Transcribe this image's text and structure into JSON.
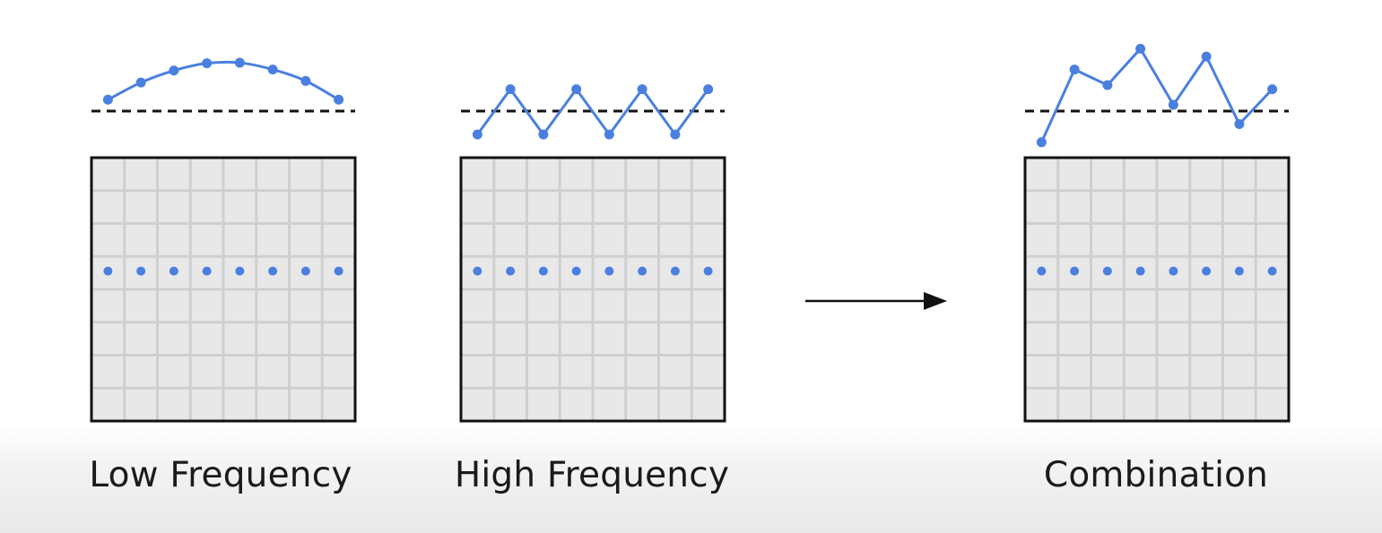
{
  "colors": {
    "signal": "#4a7fe0",
    "grid_fill": "#e8e8e8",
    "grid_line": "#cfcfcf",
    "frame": "#111111",
    "baseline": "#111111",
    "arrow": "#111111"
  },
  "samples_per_row": 8,
  "grid_size": 8,
  "highlighted_row": 3,
  "panels": [
    {
      "id": "low",
      "label": "Low Frequency",
      "signal_values": [
        0.22,
        0.55,
        0.78,
        0.92,
        0.93,
        0.8,
        0.58,
        0.22
      ],
      "curve": "smooth"
    },
    {
      "id": "high",
      "label": "High Frequency",
      "signal_values": [
        -0.45,
        0.42,
        -0.45,
        0.42,
        -0.45,
        0.42,
        -0.45,
        0.42
      ],
      "curve": "linear"
    },
    {
      "id": "combination",
      "label": "Combination",
      "signal_values": [
        -0.6,
        0.8,
        0.5,
        1.2,
        0.12,
        1.05,
        -0.25,
        0.42
      ],
      "curve": "linear"
    }
  ],
  "arrow": {
    "direction": "right"
  }
}
